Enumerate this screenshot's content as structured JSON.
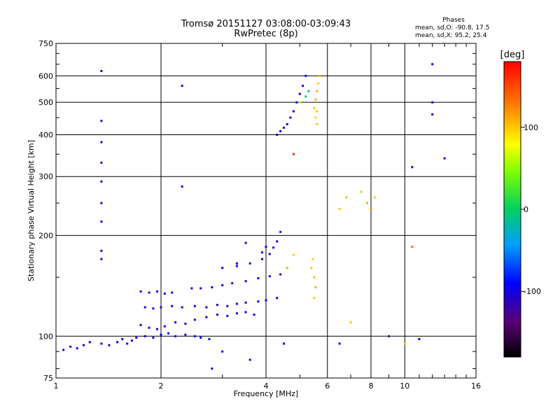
{
  "chart_data": {
    "type": "scatter",
    "title": "Tromsø 20151127 03:08:00-03:09:43",
    "subtitle": "RwPretec (8p)",
    "xlabel": "Frequency [MHz]",
    "ylabel": "Stationary phase Virtual Height [km]",
    "x_scale": "log",
    "y_scale": "log",
    "xlim": [
      1,
      16
    ],
    "ylim": [
      75,
      750
    ],
    "x_ticks": [
      1,
      2,
      4,
      6,
      8,
      10,
      16
    ],
    "x_tick_labels": [
      "1",
      "2",
      "4",
      "6",
      "8",
      "10",
      "16"
    ],
    "y_ticks": [
      75,
      100,
      200,
      300,
      400,
      500,
      600,
      750
    ],
    "y_tick_labels": [
      "75",
      "100",
      "200",
      "300",
      "400",
      "500",
      "600",
      "750"
    ],
    "grid": true,
    "phases": {
      "heading": "Phases",
      "o_stats": "mean, sd,O: -90.8, 17.5",
      "x_stats": "mean, sd,X:  95.2, 25.4"
    },
    "colorbar": {
      "label": "[deg]",
      "range": [
        -180,
        180
      ],
      "ticks": [
        100,
        0,
        -100
      ],
      "tick_labels": [
        "100",
        "0",
        "-100"
      ]
    },
    "series": [
      {
        "name": "traces",
        "points": [
          [
            1.05,
            91,
            -100
          ],
          [
            1.1,
            93,
            -95
          ],
          [
            1.15,
            92,
            -105
          ],
          [
            1.2,
            94,
            -100
          ],
          [
            1.25,
            96,
            -90
          ],
          [
            1.35,
            95,
            -100
          ],
          [
            1.42,
            94,
            -110
          ],
          [
            1.5,
            96,
            -100
          ],
          [
            1.55,
            98,
            -95
          ],
          [
            1.6,
            95,
            -100
          ],
          [
            1.65,
            97,
            -105
          ],
          [
            1.7,
            99,
            -100
          ],
          [
            1.8,
            100,
            -95
          ],
          [
            1.9,
            99,
            -100
          ],
          [
            2.0,
            101,
            -90
          ],
          [
            2.1,
            102,
            -100
          ],
          [
            2.2,
            100,
            -105
          ],
          [
            2.35,
            101,
            -95
          ],
          [
            2.5,
            100,
            -100
          ],
          [
            2.6,
            99,
            -90
          ],
          [
            2.75,
            98,
            -85
          ],
          [
            1.75,
            108,
            -105
          ],
          [
            1.85,
            106,
            -100
          ],
          [
            1.95,
            105,
            -95
          ],
          [
            2.05,
            107,
            -100
          ],
          [
            2.2,
            110,
            -100
          ],
          [
            2.35,
            109,
            -95
          ],
          [
            2.5,
            112,
            -100
          ],
          [
            2.7,
            114,
            -105
          ],
          [
            2.9,
            116,
            -100
          ],
          [
            3.1,
            115,
            -95
          ],
          [
            3.3,
            117,
            -100
          ],
          [
            3.5,
            118,
            -100
          ],
          [
            3.7,
            116,
            -95
          ],
          [
            1.8,
            122,
            -100
          ],
          [
            1.9,
            121,
            -110
          ],
          [
            2.0,
            122,
            -100
          ],
          [
            2.15,
            123,
            -95
          ],
          [
            2.3,
            122,
            -100
          ],
          [
            2.5,
            123,
            -100
          ],
          [
            2.7,
            122,
            -95
          ],
          [
            2.9,
            124,
            -100
          ],
          [
            3.1,
            123,
            -100
          ],
          [
            3.3,
            125,
            -105
          ],
          [
            3.5,
            126,
            -100
          ],
          [
            3.8,
            127,
            -95
          ],
          [
            4.0,
            128,
            -100
          ],
          [
            4.3,
            130,
            -100
          ],
          [
            1.75,
            136,
            -100
          ],
          [
            1.85,
            135,
            -105
          ],
          [
            1.95,
            136,
            -100
          ],
          [
            2.05,
            134,
            -100
          ],
          [
            2.15,
            135,
            -95
          ],
          [
            2.45,
            139,
            -100
          ],
          [
            2.6,
            139,
            -95
          ],
          [
            2.8,
            140,
            -100
          ],
          [
            3.0,
            142,
            -100
          ],
          [
            3.2,
            144,
            -105
          ],
          [
            3.5,
            146,
            -100
          ],
          [
            3.8,
            149,
            -95
          ],
          [
            4.1,
            151,
            -100
          ],
          [
            4.4,
            153,
            -100
          ],
          [
            3.0,
            160,
            -100
          ],
          [
            3.3,
            162,
            -100
          ],
          [
            3.6,
            165,
            -95
          ],
          [
            3.9,
            170,
            -100
          ],
          [
            4.1,
            176,
            -100
          ],
          [
            4.2,
            184,
            -100
          ],
          [
            4.3,
            192,
            -95
          ],
          [
            4.0,
            185,
            -100
          ],
          [
            3.9,
            178,
            -100
          ],
          [
            4.4,
            205,
            -100
          ],
          [
            4.3,
            400,
            -100
          ],
          [
            4.4,
            410,
            -95
          ],
          [
            4.5,
            420,
            -100
          ],
          [
            4.6,
            430,
            -100
          ],
          [
            4.7,
            450,
            -95
          ],
          [
            4.8,
            470,
            -100
          ],
          [
            4.9,
            500,
            -100
          ],
          [
            5.0,
            530,
            -95
          ],
          [
            5.1,
            560,
            -100
          ],
          [
            5.2,
            600,
            -100
          ],
          [
            5.5,
            480,
            100
          ],
          [
            5.55,
            510,
            110
          ],
          [
            5.6,
            540,
            105
          ],
          [
            5.65,
            570,
            100
          ],
          [
            5.7,
            600,
            110
          ],
          [
            5.6,
            470,
            100
          ],
          [
            5.55,
            450,
            95
          ],
          [
            5.6,
            430,
            100
          ],
          [
            5.2,
            520,
            0
          ],
          [
            5.3,
            540,
            -20
          ],
          [
            5.0,
            500,
            60
          ],
          [
            5.4,
            160,
            100
          ],
          [
            5.5,
            150,
            105
          ],
          [
            5.45,
            170,
            100
          ],
          [
            5.55,
            140,
            110
          ],
          [
            5.5,
            130,
            100
          ],
          [
            4.8,
            175,
            100
          ],
          [
            4.6,
            160,
            110
          ],
          [
            6.5,
            240,
            100
          ],
          [
            6.8,
            260,
            105
          ],
          [
            7.5,
            270,
            100
          ],
          [
            7.8,
            250,
            110
          ],
          [
            8.0,
            240,
            120
          ],
          [
            8.2,
            260,
            100
          ],
          [
            1.35,
            620,
            -100
          ],
          [
            1.35,
            440,
            -100
          ],
          [
            1.35,
            380,
            -100
          ],
          [
            1.35,
            330,
            -100
          ],
          [
            1.35,
            290,
            -100
          ],
          [
            1.35,
            250,
            -100
          ],
          [
            1.35,
            220,
            -100
          ],
          [
            1.35,
            180,
            -100
          ],
          [
            1.35,
            170,
            -100
          ],
          [
            2.3,
            560,
            -100
          ],
          [
            2.3,
            280,
            -100
          ],
          [
            3.3,
            165,
            -100
          ],
          [
            3.5,
            190,
            -100
          ],
          [
            4.8,
            350,
            160
          ],
          [
            10.5,
            320,
            -100
          ],
          [
            12,
            650,
            -100
          ],
          [
            12,
            500,
            -100
          ],
          [
            12,
            460,
            -100
          ],
          [
            13,
            340,
            -100
          ],
          [
            9.0,
            100,
            -130
          ],
          [
            10.0,
            95,
            100
          ],
          [
            11.0,
            98,
            -100
          ],
          [
            10.5,
            185,
            140
          ],
          [
            7.0,
            110,
            100
          ],
          [
            6.5,
            95,
            -100
          ],
          [
            2.8,
            80,
            -100
          ],
          [
            3.0,
            90,
            -100
          ],
          [
            3.6,
            85,
            -100
          ],
          [
            4.5,
            95,
            -100
          ]
        ]
      }
    ]
  }
}
